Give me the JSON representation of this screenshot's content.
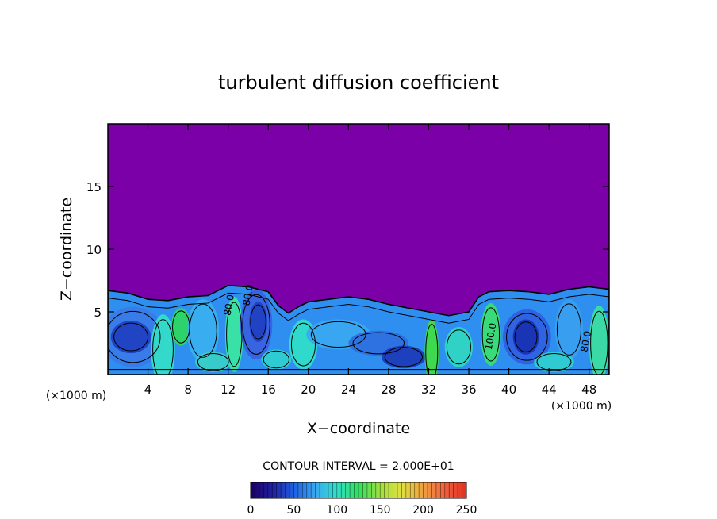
{
  "chart_data": {
    "type": "contour",
    "title": "turbulent diffusion coefficient",
    "xlabel": "X−coordinate",
    "ylabel": "Z−coordinate",
    "x_unit_left": "(×1000 m)",
    "x_unit_right": "(×1000 m)",
    "xlim": [
      0,
      50
    ],
    "ylim": [
      0,
      20
    ],
    "x_ticks": [
      4,
      8,
      12,
      16,
      20,
      24,
      28,
      32,
      36,
      40,
      44,
      48
    ],
    "y_ticks": [
      5,
      10,
      15
    ],
    "contour_interval_text": "CONTOUR INTERVAL = 2.000E+01",
    "contour_interval": 20,
    "colorbar": {
      "min": 0,
      "max": 250,
      "ticks": [
        0,
        50,
        100,
        150,
        200,
        250
      ],
      "colors": [
        "#1a0060",
        "#2020a0",
        "#1f5fe0",
        "#3aa8f0",
        "#30e0c8",
        "#30e060",
        "#a0e040",
        "#e0e040",
        "#f0a040",
        "#f06040",
        "#e03020"
      ]
    },
    "background_color": "#7b00a8",
    "contour_labels": [
      "80.0",
      "80.0",
      "100.0",
      "80.0"
    ],
    "top_boundary": [
      [
        0,
        6.7
      ],
      [
        2,
        6.5
      ],
      [
        4,
        6.0
      ],
      [
        6,
        5.9
      ],
      [
        8,
        6.2
      ],
      [
        10,
        6.3
      ],
      [
        12,
        7.1
      ],
      [
        14,
        7.0
      ],
      [
        16,
        6.6
      ],
      [
        17,
        5.5
      ],
      [
        18,
        4.9
      ],
      [
        19,
        5.4
      ],
      [
        20,
        5.8
      ],
      [
        22,
        6.0
      ],
      [
        24,
        6.2
      ],
      [
        26,
        6.0
      ],
      [
        28,
        5.6
      ],
      [
        30,
        5.3
      ],
      [
        32,
        5.0
      ],
      [
        34,
        4.7
      ],
      [
        36,
        5.0
      ],
      [
        37,
        6.2
      ],
      [
        38,
        6.6
      ],
      [
        40,
        6.7
      ],
      [
        42,
        6.6
      ],
      [
        44,
        6.4
      ],
      [
        46,
        6.8
      ],
      [
        48,
        7.0
      ],
      [
        50,
        6.8
      ]
    ]
  }
}
